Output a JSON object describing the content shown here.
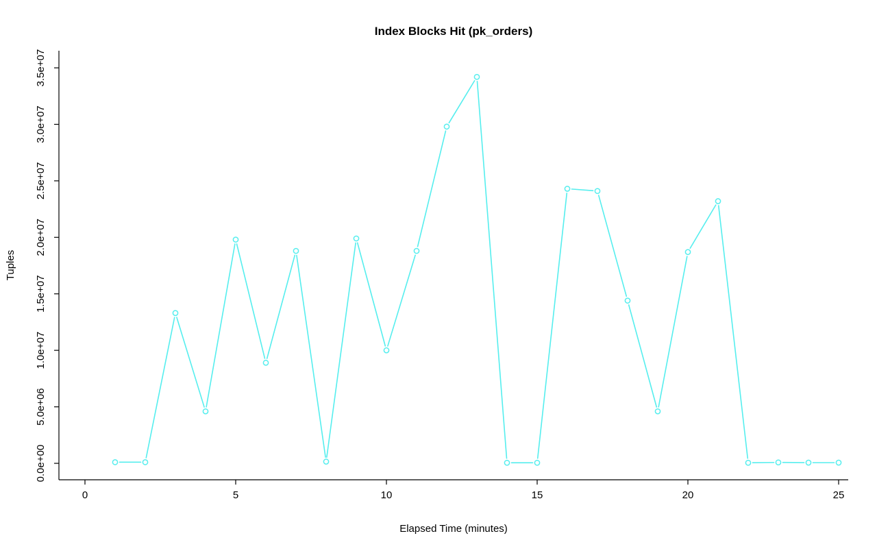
{
  "chart_data": {
    "type": "line",
    "title": "Index Blocks Hit (pk_orders)",
    "xlabel": "Elapsed Time (minutes)",
    "ylabel": "Tuples",
    "x": [
      1,
      2,
      3,
      4,
      5,
      6,
      7,
      8,
      9,
      10,
      11,
      12,
      13,
      14,
      15,
      16,
      17,
      18,
      19,
      20,
      21,
      22,
      23,
      24,
      25
    ],
    "values": [
      100000,
      100000,
      13300000,
      4600000,
      19800000,
      8900000,
      18800000,
      150000,
      19900000,
      10000000,
      18800000,
      29800000,
      34200000,
      50000,
      50000,
      24300000,
      24100000,
      14400000,
      4600000,
      18700000,
      23200000,
      50000,
      80000,
      60000,
      60000
    ],
    "xlim": [
      0,
      25
    ],
    "ylim": [
      0,
      35000000
    ],
    "xticks": [
      0,
      5,
      10,
      15,
      20,
      25
    ],
    "xtick_labels": [
      "0",
      "5",
      "10",
      "15",
      "20",
      "25"
    ],
    "yticks": [
      0,
      5000000,
      10000000,
      15000000,
      20000000,
      25000000,
      30000000,
      35000000
    ],
    "ytick_labels": [
      "0.0e+00",
      "5.0e+06",
      "1.0e+07",
      "1.5e+07",
      "2.0e+07",
      "2.5e+07",
      "3.0e+07",
      "3.5e+07"
    ],
    "series_color": "#55EEEE",
    "axis_color": "#000000",
    "marker": "open-circle",
    "line_style": "points-and-lines",
    "grid": false,
    "legend_position": "none"
  }
}
